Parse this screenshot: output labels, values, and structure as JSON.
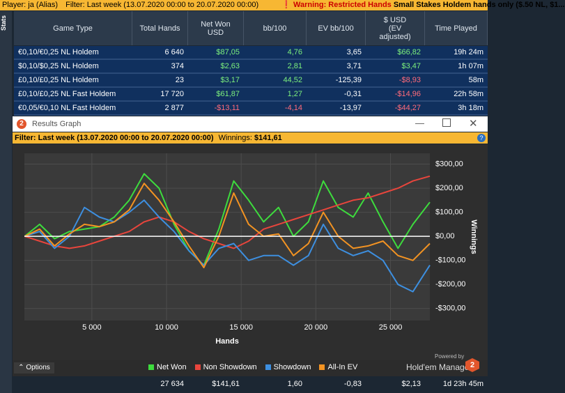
{
  "top_bar": {
    "player": "Player: ja (Alias)",
    "filter": "Filter: Last week (13.07.2020 00:00 to 20.07.2020 00:00)",
    "warning": "Warning: Restricted Hands",
    "warning_detail": "Small Stakes Holdem hands only ($.50 NL, $1..."
  },
  "side_tab": "Stats",
  "stats_table": {
    "columns": [
      "Game Type",
      "Total Hands",
      "Net Won USD",
      "bb/100",
      "EV bb/100",
      "$ USD (EV adjusted)",
      "Time Played"
    ],
    "rows": [
      [
        "€0,10/€0,25 NL Holdem",
        "6 640",
        "$87,05",
        "4,76",
        "3,65",
        "$66,82",
        "19h 24m"
      ],
      [
        "$0,10/$0,25 NL Holdem",
        "374",
        "$2,63",
        "2,81",
        "3,71",
        "$3,47",
        "1h 07m"
      ],
      [
        "£0,10/£0,25 NL Holdem",
        "23",
        "$3,17",
        "44,52",
        "-125,39",
        "-$8,93",
        "58m"
      ],
      [
        "£0,10/£0,25 NL Fast Holdem",
        "17 720",
        "$61,87",
        "1,27",
        "-0,31",
        "-$14,96",
        "22h 58m"
      ],
      [
        "€0,05/€0,10 NL Fast Holdem",
        "2 877",
        "-$13,11",
        "-4,14",
        "-13,97",
        "-$44,27",
        "3h 18m"
      ]
    ],
    "totals": [
      "27 634",
      "$141,61",
      "1,60",
      "-0,83",
      "$2,13",
      "1d 23h 45m"
    ]
  },
  "graph": {
    "title": "Results Graph",
    "filter": "Filter: Last week (13.07.2020 00:00 to 20.07.2020 00:00)",
    "winnings_label": "Winnings:",
    "winnings": "$141,61",
    "options": "Options",
    "powered_by": "Powered by",
    "brand": "Hold'em Manager",
    "chart_data": {
      "type": "line",
      "x_label": "Hands",
      "y_label": "Winnings",
      "x": [
        500,
        1500,
        2500,
        3500,
        4500,
        5500,
        6500,
        7500,
        8500,
        9500,
        10500,
        11500,
        12500,
        13500,
        14500,
        15500,
        16500,
        17500,
        18500,
        19500,
        20500,
        21500,
        22500,
        23500,
        24500,
        25500,
        26500,
        27634
      ],
      "series": [
        {
          "name": "Net Won",
          "color": "#3ddc3d",
          "values": [
            0,
            50,
            -10,
            20,
            30,
            40,
            80,
            150,
            260,
            200,
            50,
            -60,
            -120,
            30,
            230,
            150,
            60,
            120,
            0,
            60,
            230,
            120,
            80,
            180,
            60,
            -50,
            50,
            141.61
          ]
        },
        {
          "name": "Non Showdown",
          "color": "#e8453c",
          "values": [
            0,
            -20,
            -40,
            -50,
            -40,
            -20,
            0,
            20,
            60,
            80,
            60,
            20,
            -10,
            -30,
            -50,
            -20,
            30,
            50,
            70,
            90,
            110,
            130,
            150,
            160,
            180,
            200,
            230,
            250
          ]
        },
        {
          "name": "Showdown",
          "color": "#3d8fe0",
          "values": [
            0,
            20,
            -50,
            0,
            120,
            80,
            60,
            100,
            150,
            80,
            20,
            -60,
            -120,
            -50,
            -30,
            -100,
            -80,
            -80,
            -120,
            -80,
            50,
            -50,
            -80,
            -60,
            -100,
            -200,
            -230,
            -120
          ]
        },
        {
          "name": "All-In EV",
          "color": "#f39322",
          "values": [
            0,
            30,
            -40,
            10,
            50,
            40,
            60,
            110,
            220,
            150,
            60,
            -40,
            -130,
            0,
            180,
            50,
            0,
            10,
            -80,
            -30,
            100,
            0,
            -50,
            -40,
            -20,
            -80,
            -100,
            -30
          ]
        }
      ],
      "xlim": [
        480,
        27634
      ],
      "ylim": [
        -350,
        345
      ],
      "xticks": [
        {
          "value": 5000,
          "label": "5 000"
        },
        {
          "value": 10000,
          "label": "10 000"
        },
        {
          "value": 15000,
          "label": "15 000"
        },
        {
          "value": 20000,
          "label": "20 000"
        },
        {
          "value": 25000,
          "label": "25 000"
        }
      ],
      "yticks": [
        {
          "value": 300,
          "label": "$300,00"
        },
        {
          "value": 200,
          "label": "$200,00"
        },
        {
          "value": 100,
          "label": "$100,00"
        },
        {
          "value": 0,
          "label": "$0,00"
        },
        {
          "value": -100,
          "label": "-$100,00"
        },
        {
          "value": -200,
          "label": "-$200,00"
        },
        {
          "value": -300,
          "label": "-$300,00"
        }
      ],
      "grid": true
    }
  }
}
